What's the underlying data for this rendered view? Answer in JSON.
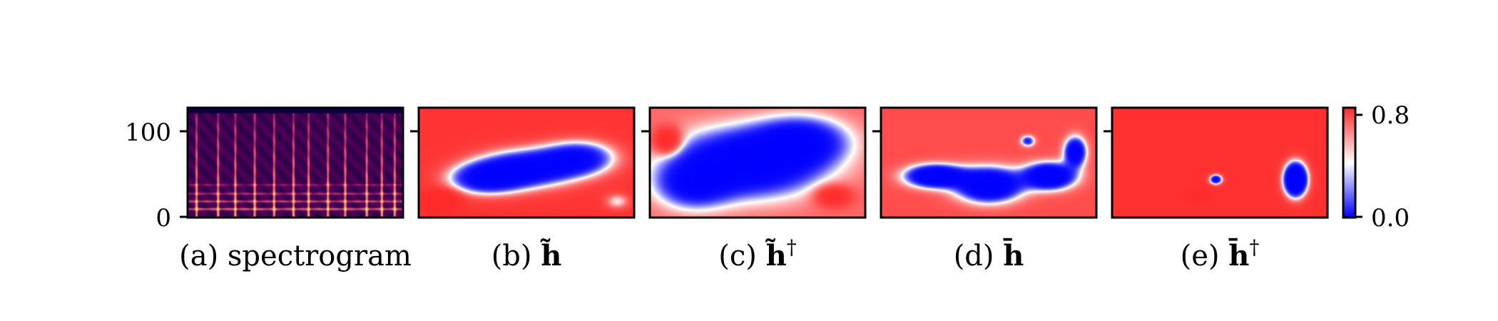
{
  "chart_data": {
    "type": "heatmap",
    "panels": [
      {
        "id": "a",
        "caption_prefix": "(a) ",
        "caption_main": "spectrogram",
        "caption_sup": "",
        "kind": "spectrogram",
        "y_ticks": [
          0,
          100
        ],
        "ylim": [
          0,
          128
        ]
      },
      {
        "id": "b",
        "caption_prefix": "(b) ",
        "caption_main": "h̃",
        "caption_sup": "",
        "kind": "saliency",
        "blobs": [
          {
            "cx": 0.5,
            "cy": 0.55,
            "rx": 0.3,
            "ry": 0.22,
            "w": -1.0
          },
          {
            "cx": 0.3,
            "cy": 0.65,
            "rx": 0.22,
            "ry": 0.18,
            "w": -0.8
          },
          {
            "cx": 0.75,
            "cy": 0.45,
            "rx": 0.22,
            "ry": 0.2,
            "w": -0.8
          },
          {
            "cx": 0.1,
            "cy": 0.85,
            "rx": 0.1,
            "ry": 0.12,
            "w": 0.5
          },
          {
            "cx": 0.92,
            "cy": 0.85,
            "rx": 0.08,
            "ry": 0.1,
            "w": -0.4
          }
        ],
        "base": 0.78
      },
      {
        "id": "c",
        "caption_prefix": "(c) ",
        "caption_main": "h̃",
        "caption_sup": "†",
        "kind": "saliency",
        "blobs": [
          {
            "cx": 0.45,
            "cy": 0.5,
            "rx": 0.4,
            "ry": 0.35,
            "w": -1.0
          },
          {
            "cx": 0.7,
            "cy": 0.3,
            "rx": 0.25,
            "ry": 0.25,
            "w": -0.7
          },
          {
            "cx": 0.2,
            "cy": 0.7,
            "rx": 0.2,
            "ry": 0.25,
            "w": -0.6
          },
          {
            "cx": 0.08,
            "cy": 0.3,
            "rx": 0.08,
            "ry": 0.15,
            "w": 0.5
          },
          {
            "cx": 0.85,
            "cy": 0.8,
            "rx": 0.1,
            "ry": 0.12,
            "w": 0.4
          }
        ],
        "base": 0.55
      },
      {
        "id": "d",
        "caption_prefix": "(d) ",
        "caption_main": "h̄",
        "caption_sup": "",
        "kind": "saliency",
        "blobs": [
          {
            "cx": 0.25,
            "cy": 0.62,
            "rx": 0.16,
            "ry": 0.12,
            "w": -1.2
          },
          {
            "cx": 0.5,
            "cy": 0.7,
            "rx": 0.18,
            "ry": 0.18,
            "w": -1.2
          },
          {
            "cx": 0.78,
            "cy": 0.62,
            "rx": 0.14,
            "ry": 0.14,
            "w": -1.2
          },
          {
            "cx": 0.9,
            "cy": 0.4,
            "rx": 0.06,
            "ry": 0.16,
            "w": -1.0
          },
          {
            "cx": 0.68,
            "cy": 0.3,
            "rx": 0.04,
            "ry": 0.06,
            "w": -0.6
          }
        ],
        "base": 0.62
      },
      {
        "id": "e",
        "caption_prefix": "(e) ",
        "caption_main": "h̄",
        "caption_sup": "†",
        "kind": "saliency",
        "blobs": [
          {
            "cx": 0.85,
            "cy": 0.65,
            "rx": 0.07,
            "ry": 0.2,
            "w": -1.6
          },
          {
            "cx": 0.48,
            "cy": 0.65,
            "rx": 0.04,
            "ry": 0.06,
            "w": -1.0
          },
          {
            "cx": 0.4,
            "cy": 0.8,
            "rx": 0.06,
            "ry": 0.06,
            "w": 0.2
          }
        ],
        "base": 0.82
      }
    ],
    "colorbar": {
      "ticks": [
        "0.0",
        "0.8"
      ],
      "vmin": 0.0,
      "vmax": 0.8,
      "colormap": "bwr"
    },
    "colors": {
      "low": "#0000ff",
      "mid": "#ffffff",
      "high": "#ff2a2a"
    }
  }
}
